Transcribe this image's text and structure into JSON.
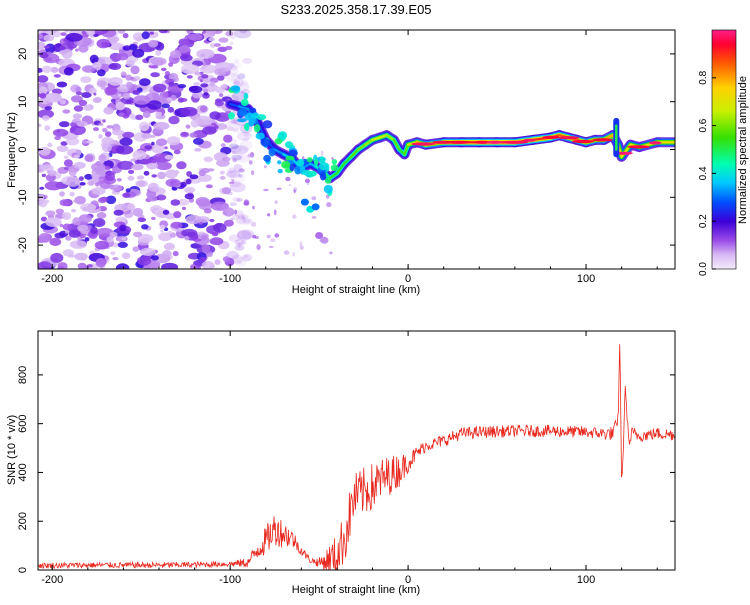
{
  "title": "S233.2025.358.17.39.E05",
  "chart_data": [
    {
      "type": "heatmap",
      "name": "spectrogram",
      "xlabel": "Height of straight line (km)",
      "ylabel": "Frequency (Hz)",
      "xlim": [
        -208,
        150
      ],
      "ylim": [
        -25,
        25
      ],
      "xticks": [
        -200,
        -100,
        0,
        100
      ],
      "yticks": [
        -20,
        -10,
        0,
        10,
        20
      ],
      "colorbar": {
        "label": "Normalized spectral amplitude",
        "range": [
          0,
          1
        ],
        "ticks": [
          0.0,
          0.2,
          0.4,
          0.6,
          0.8
        ],
        "tick_labels": [
          "0.0",
          "0.2",
          "0.4",
          "0.6",
          "0.8"
        ]
      },
      "ridge": {
        "x": [
          -100,
          -95,
          -90,
          -85,
          -80,
          -75,
          -70,
          -65,
          -60,
          -55,
          -52,
          -48,
          -44,
          -40,
          -36,
          -32,
          -28,
          -24,
          -20,
          -16,
          -12,
          -8,
          -5,
          -2,
          0,
          5,
          10,
          20,
          30,
          40,
          50,
          60,
          70,
          80,
          85,
          90,
          95,
          100,
          105,
          110,
          115,
          118,
          120,
          125,
          130,
          140,
          150
        ],
        "y": [
          9.5,
          9,
          8.5,
          6,
          2,
          0,
          -1,
          -2,
          -4,
          -3,
          -3.5,
          -4.5,
          -6,
          -5,
          -3,
          -1.5,
          0,
          1,
          2,
          2.5,
          3,
          2,
          0,
          -1,
          1,
          1.5,
          1,
          1.5,
          1.5,
          1.5,
          1.5,
          1.5,
          2,
          2.5,
          3,
          2.5,
          2,
          1.5,
          2,
          2,
          3,
          1,
          -1.5,
          1,
          0.5,
          1.5,
          1.5
        ],
        "amplitude": [
          0.25,
          0.3,
          0.35,
          0.3,
          0.25,
          0.3,
          0.35,
          0.4,
          0.35,
          0.3,
          0.4,
          0.45,
          0.5,
          0.55,
          0.5,
          0.55,
          0.6,
          0.6,
          0.65,
          0.7,
          0.65,
          0.6,
          0.55,
          0.5,
          0.65,
          0.75,
          0.8,
          0.85,
          0.9,
          0.95,
          0.95,
          0.92,
          0.9,
          0.9,
          0.88,
          0.85,
          0.85,
          0.85,
          0.8,
          0.8,
          0.8,
          0.75,
          0.7,
          0.75,
          0.7,
          0.75,
          0.75
        ]
      },
      "noise_region_x": [
        -208,
        -100
      ],
      "noise_frequency_range": [
        -25,
        25
      ]
    },
    {
      "type": "line",
      "name": "snr",
      "xlabel": "Height of straight line (km)",
      "ylabel": "SNR (10 * v/v)",
      "xlim": [
        -208,
        150
      ],
      "ylim": [
        0,
        980
      ],
      "xticks": [
        -200,
        -100,
        0,
        100
      ],
      "yticks": [
        0,
        200,
        400,
        600,
        800
      ],
      "color": "#e8281e",
      "series": [
        {
          "name": "SNR",
          "x": [
            -208,
            -180,
            -160,
            -140,
            -120,
            -100,
            -90,
            -85,
            -80,
            -75,
            -70,
            -65,
            -60,
            -55,
            -50,
            -45,
            -40,
            -35,
            -32,
            -30,
            -25,
            -20,
            -15,
            -10,
            -5,
            0,
            5,
            10,
            15,
            20,
            25,
            30,
            40,
            60,
            80,
            100,
            110,
            115,
            118,
            119,
            120,
            121,
            122,
            124,
            126,
            130,
            140,
            150
          ],
          "y": [
            18,
            20,
            20,
            20,
            22,
            25,
            30,
            80,
            120,
            170,
            150,
            130,
            80,
            40,
            30,
            40,
            60,
            150,
            250,
            300,
            320,
            340,
            370,
            390,
            410,
            440,
            480,
            510,
            520,
            530,
            545,
            560,
            565,
            570,
            570,
            565,
            560,
            560,
            600,
            960,
            350,
            500,
            760,
            520,
            560,
            550,
            560,
            555
          ],
          "noise_amplitude": [
            12,
            12,
            12,
            12,
            12,
            12,
            20,
            40,
            60,
            70,
            60,
            40,
            20,
            12,
            20,
            60,
            90,
            110,
            110,
            100,
            100,
            100,
            90,
            80,
            70,
            40,
            30,
            25,
            25,
            25,
            25,
            25,
            25,
            25,
            25,
            25,
            25,
            30,
            40,
            0,
            0,
            0,
            0,
            30,
            30,
            25,
            25,
            25
          ]
        }
      ]
    }
  ]
}
